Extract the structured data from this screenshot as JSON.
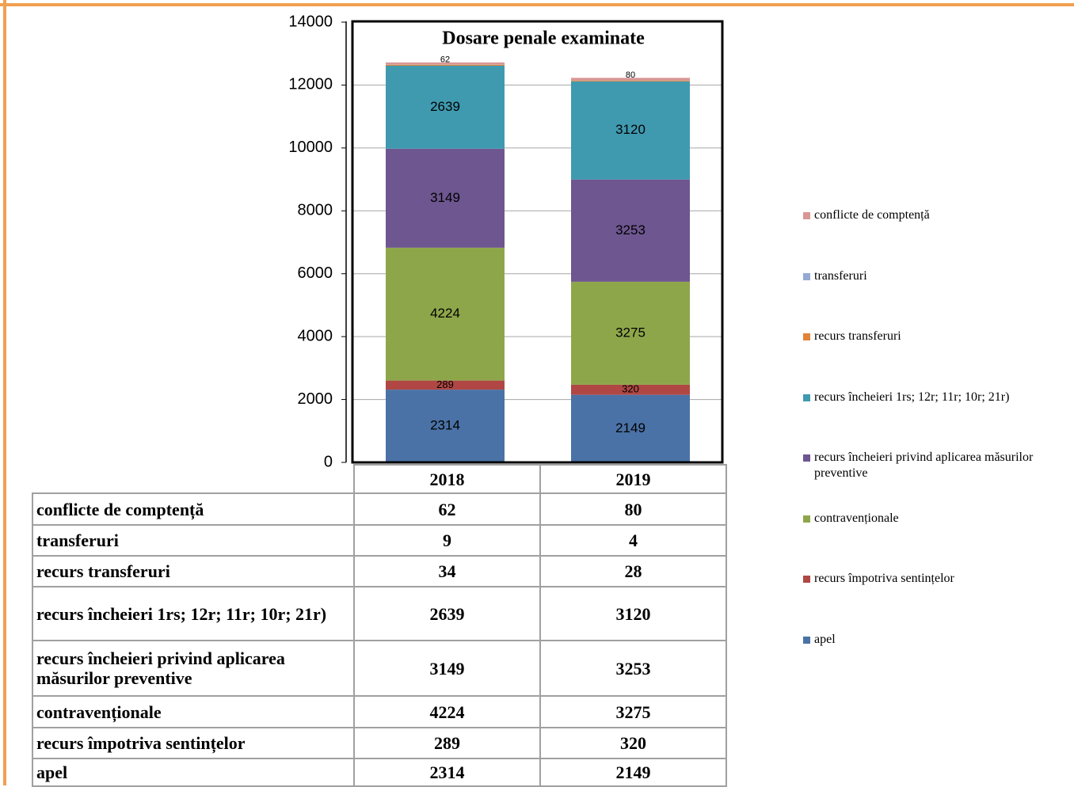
{
  "chart_data": {
    "type": "stacked_bar",
    "title": "Dosare penale examinate",
    "categories": [
      "2018",
      "2019"
    ],
    "series": [
      {
        "name": "apel",
        "color": "#4a72a6",
        "values": [
          2314,
          2149
        ],
        "data_labels": true
      },
      {
        "name": "recurs împotriva sentințelor",
        "color": "#b04744",
        "values": [
          289,
          320
        ],
        "data_labels": true
      },
      {
        "name": "contravenționale",
        "color": "#8ea64a",
        "values": [
          4224,
          3275
        ],
        "data_labels": true
      },
      {
        "name": "recurs încheieri privind aplicarea măsurilor preventive",
        "color": "#6e5690",
        "values": [
          3149,
          3253
        ],
        "data_labels": true
      },
      {
        "name": "recurs încheieri 1rs; 12r; 11r; 10r; 21r)",
        "color": "#3f9ab0",
        "values": [
          2639,
          3120
        ],
        "data_labels": true
      },
      {
        "name": "recurs transferuri",
        "color": "#e0843a",
        "values": [
          34,
          28
        ],
        "data_labels": false
      },
      {
        "name": "transferuri",
        "color": "#94a9d4",
        "values": [
          9,
          4
        ],
        "data_labels": false
      },
      {
        "name": "conflicte de comptență",
        "color": "#d99694",
        "values": [
          62,
          80
        ],
        "data_labels": true
      }
    ],
    "ylim": [
      0,
      14000
    ],
    "yticks": [
      0,
      2000,
      4000,
      6000,
      8000,
      10000,
      12000,
      14000
    ],
    "grid": true,
    "legend": "right"
  }
}
